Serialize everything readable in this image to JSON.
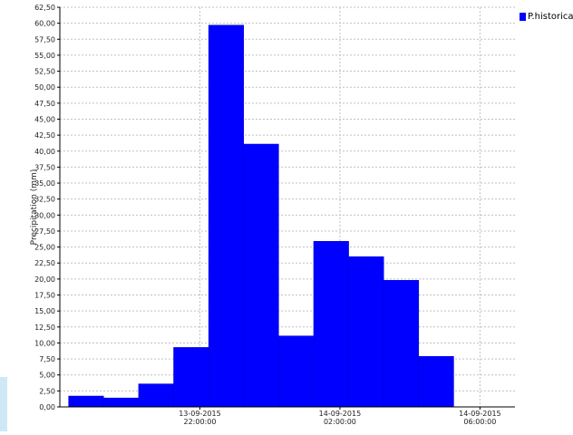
{
  "colors": {
    "series": "#0000ff",
    "grid": "#c0c0c0",
    "axis": "#000000",
    "side_strip": "#cfe8f7"
  },
  "chart_data": {
    "type": "bar",
    "ylabel": "Precipitation (mm)",
    "xlabel": "",
    "ylim": [
      0,
      62.5
    ],
    "yticks": [
      "0,00",
      "2,50",
      "5,00",
      "7,50",
      "10,00",
      "12,50",
      "15,00",
      "17,50",
      "20,00",
      "22,50",
      "25,00",
      "27,50",
      "30,00",
      "32,50",
      "35,00",
      "37,50",
      "40,00",
      "42,50",
      "45,00",
      "47,50",
      "50,00",
      "52,50",
      "55,00",
      "57,50",
      "60,00",
      "62,50"
    ],
    "x_time_range": [
      "13-09-2015 18:00:00",
      "14-09-2015 07:00:00"
    ],
    "xticks": [
      {
        "date": "13-09-2015",
        "time": "22:00:00",
        "t": "13-09-2015 22:00:00"
      },
      {
        "date": "14-09-2015",
        "time": "02:00:00",
        "t": "14-09-2015 02:00:00"
      },
      {
        "date": "14-09-2015",
        "time": "06:00:00",
        "t": "14-09-2015 06:00:00"
      }
    ],
    "grid": true,
    "legend_position": "top-right",
    "series": [
      {
        "name": "P.historical",
        "color": "#0000ff",
        "bars": [
          {
            "start": "13-09-2015 18:15:00",
            "end": "13-09-2015 19:15:00",
            "value": 1.7
          },
          {
            "start": "13-09-2015 19:15:00",
            "end": "13-09-2015 20:15:00",
            "value": 1.4
          },
          {
            "start": "13-09-2015 20:15:00",
            "end": "13-09-2015 21:15:00",
            "value": 3.6
          },
          {
            "start": "13-09-2015 21:15:00",
            "end": "13-09-2015 22:15:00",
            "value": 9.3
          },
          {
            "start": "13-09-2015 22:15:00",
            "end": "13-09-2015 23:15:00",
            "value": 59.7
          },
          {
            "start": "13-09-2015 23:15:00",
            "end": "14-09-2015 00:15:00",
            "value": 41.1
          },
          {
            "start": "14-09-2015 00:15:00",
            "end": "14-09-2015 01:15:00",
            "value": 11.1
          },
          {
            "start": "14-09-2015 01:15:00",
            "end": "14-09-2015 02:15:00",
            "value": 25.9
          },
          {
            "start": "14-09-2015 02:15:00",
            "end": "14-09-2015 03:15:00",
            "value": 23.5
          },
          {
            "start": "14-09-2015 03:15:00",
            "end": "14-09-2015 04:15:00",
            "value": 19.8
          },
          {
            "start": "14-09-2015 04:15:00",
            "end": "14-09-2015 05:15:00",
            "value": 7.9
          }
        ]
      }
    ]
  }
}
